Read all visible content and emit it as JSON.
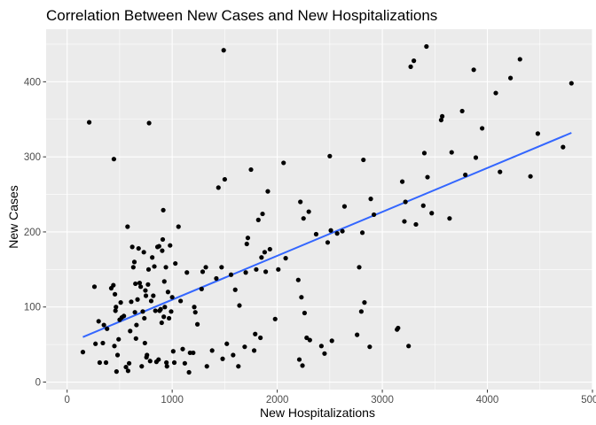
{
  "chart_data": {
    "type": "scatter",
    "title": "Correlation Between New Cases and New Hospitalizations",
    "xlabel": "New Hospitalizations",
    "ylabel": "New Cases",
    "xlim": [
      -200,
      5000
    ],
    "ylim": [
      -10,
      470
    ],
    "xticks": [
      0,
      1000,
      2000,
      3000,
      4000,
      5000
    ],
    "xtick_labels": [
      "0",
      "1000",
      "2000",
      "3000",
      "4000",
      "5000"
    ],
    "yticks": [
      0,
      100,
      200,
      300,
      400
    ],
    "ytick_labels": [
      "0",
      "100",
      "200",
      "300",
      "400"
    ],
    "grid": true,
    "panel_color": "#ebebeb",
    "grid_color": "#ffffff",
    "point_color": "#000000",
    "trend_color": "#3366ff",
    "trend_line": {
      "x": [
        150,
        4800
      ],
      "y": [
        60,
        332
      ]
    },
    "points": [
      [
        150,
        40
      ],
      [
        210,
        346
      ],
      [
        260,
        127
      ],
      [
        270,
        51
      ],
      [
        300,
        81
      ],
      [
        310,
        26
      ],
      [
        340,
        52
      ],
      [
        350,
        76
      ],
      [
        370,
        26
      ],
      [
        380,
        71
      ],
      [
        420,
        125
      ],
      [
        440,
        129
      ],
      [
        445,
        297
      ],
      [
        450,
        48
      ],
      [
        455,
        117
      ],
      [
        460,
        95
      ],
      [
        465,
        100
      ],
      [
        470,
        14
      ],
      [
        480,
        36
      ],
      [
        490,
        57
      ],
      [
        500,
        83
      ],
      [
        510,
        106
      ],
      [
        520,
        86
      ],
      [
        540,
        88
      ],
      [
        560,
        20
      ],
      [
        575,
        207
      ],
      [
        580,
        15
      ],
      [
        590,
        25
      ],
      [
        600,
        68
      ],
      [
        610,
        107
      ],
      [
        620,
        180
      ],
      [
        630,
        153
      ],
      [
        640,
        160
      ],
      [
        645,
        93
      ],
      [
        650,
        131
      ],
      [
        655,
        58
      ],
      [
        660,
        76
      ],
      [
        670,
        110
      ],
      [
        680,
        178
      ],
      [
        690,
        132
      ],
      [
        700,
        127
      ],
      [
        710,
        21
      ],
      [
        720,
        94
      ],
      [
        730,
        173
      ],
      [
        735,
        85
      ],
      [
        740,
        52
      ],
      [
        745,
        122
      ],
      [
        750,
        115
      ],
      [
        755,
        33
      ],
      [
        760,
        36
      ],
      [
        770,
        130
      ],
      [
        775,
        150
      ],
      [
        780,
        345
      ],
      [
        790,
        28
      ],
      [
        800,
        108
      ],
      [
        810,
        166
      ],
      [
        820,
        115
      ],
      [
        830,
        154
      ],
      [
        840,
        95
      ],
      [
        850,
        27
      ],
      [
        860,
        180
      ],
      [
        870,
        30
      ],
      [
        875,
        181
      ],
      [
        880,
        95
      ],
      [
        890,
        97
      ],
      [
        900,
        79
      ],
      [
        905,
        175
      ],
      [
        910,
        190
      ],
      [
        915,
        229
      ],
      [
        920,
        87
      ],
      [
        925,
        134
      ],
      [
        930,
        100
      ],
      [
        940,
        153
      ],
      [
        945,
        26
      ],
      [
        950,
        21
      ],
      [
        960,
        120
      ],
      [
        970,
        85
      ],
      [
        980,
        182
      ],
      [
        990,
        94
      ],
      [
        1000,
        113
      ],
      [
        1010,
        41
      ],
      [
        1020,
        26
      ],
      [
        1030,
        158
      ],
      [
        1060,
        207
      ],
      [
        1080,
        108
      ],
      [
        1100,
        44
      ],
      [
        1120,
        25
      ],
      [
        1140,
        146
      ],
      [
        1160,
        13
      ],
      [
        1170,
        39
      ],
      [
        1200,
        39
      ],
      [
        1210,
        100
      ],
      [
        1220,
        93
      ],
      [
        1240,
        77
      ],
      [
        1280,
        124
      ],
      [
        1290,
        147
      ],
      [
        1320,
        153
      ],
      [
        1330,
        21
      ],
      [
        1380,
        42
      ],
      [
        1420,
        138
      ],
      [
        1440,
        259
      ],
      [
        1470,
        153
      ],
      [
        1480,
        31
      ],
      [
        1490,
        442
      ],
      [
        1500,
        270
      ],
      [
        1520,
        51
      ],
      [
        1560,
        143
      ],
      [
        1580,
        36
      ],
      [
        1600,
        123
      ],
      [
        1630,
        21
      ],
      [
        1640,
        102
      ],
      [
        1690,
        47
      ],
      [
        1700,
        146
      ],
      [
        1710,
        184
      ],
      [
        1720,
        192
      ],
      [
        1750,
        283
      ],
      [
        1780,
        42
      ],
      [
        1790,
        64
      ],
      [
        1800,
        150
      ],
      [
        1820,
        216
      ],
      [
        1840,
        59
      ],
      [
        1850,
        166
      ],
      [
        1860,
        224
      ],
      [
        1880,
        173
      ],
      [
        1890,
        147
      ],
      [
        1910,
        254
      ],
      [
        1930,
        177
      ],
      [
        1980,
        84
      ],
      [
        2010,
        150
      ],
      [
        2060,
        292
      ],
      [
        2080,
        165
      ],
      [
        2200,
        136
      ],
      [
        2210,
        30
      ],
      [
        2220,
        240
      ],
      [
        2230,
        113
      ],
      [
        2240,
        22
      ],
      [
        2250,
        218
      ],
      [
        2260,
        92
      ],
      [
        2280,
        59
      ],
      [
        2300,
        227
      ],
      [
        2310,
        56
      ],
      [
        2370,
        197
      ],
      [
        2420,
        48
      ],
      [
        2450,
        38
      ],
      [
        2480,
        186
      ],
      [
        2500,
        301
      ],
      [
        2510,
        202
      ],
      [
        2520,
        55
      ],
      [
        2570,
        198
      ],
      [
        2620,
        201
      ],
      [
        2640,
        234
      ],
      [
        2760,
        63
      ],
      [
        2780,
        153
      ],
      [
        2800,
        94
      ],
      [
        2810,
        199
      ],
      [
        2820,
        296
      ],
      [
        2830,
        106
      ],
      [
        2880,
        47
      ],
      [
        2890,
        244
      ],
      [
        2920,
        223
      ],
      [
        3140,
        70
      ],
      [
        3150,
        72
      ],
      [
        3190,
        267
      ],
      [
        3210,
        214
      ],
      [
        3220,
        240
      ],
      [
        3250,
        48
      ],
      [
        3270,
        420
      ],
      [
        3300,
        428
      ],
      [
        3320,
        210
      ],
      [
        3390,
        235
      ],
      [
        3400,
        305
      ],
      [
        3420,
        447
      ],
      [
        3430,
        273
      ],
      [
        3470,
        225
      ],
      [
        3560,
        349
      ],
      [
        3570,
        354
      ],
      [
        3640,
        218
      ],
      [
        3660,
        306
      ],
      [
        3760,
        361
      ],
      [
        3790,
        276
      ],
      [
        3870,
        416
      ],
      [
        3890,
        299
      ],
      [
        3950,
        338
      ],
      [
        4080,
        385
      ],
      [
        4120,
        280
      ],
      [
        4220,
        405
      ],
      [
        4310,
        430
      ],
      [
        4410,
        274
      ],
      [
        4480,
        331
      ],
      [
        4720,
        313
      ],
      [
        4800,
        398
      ]
    ]
  }
}
